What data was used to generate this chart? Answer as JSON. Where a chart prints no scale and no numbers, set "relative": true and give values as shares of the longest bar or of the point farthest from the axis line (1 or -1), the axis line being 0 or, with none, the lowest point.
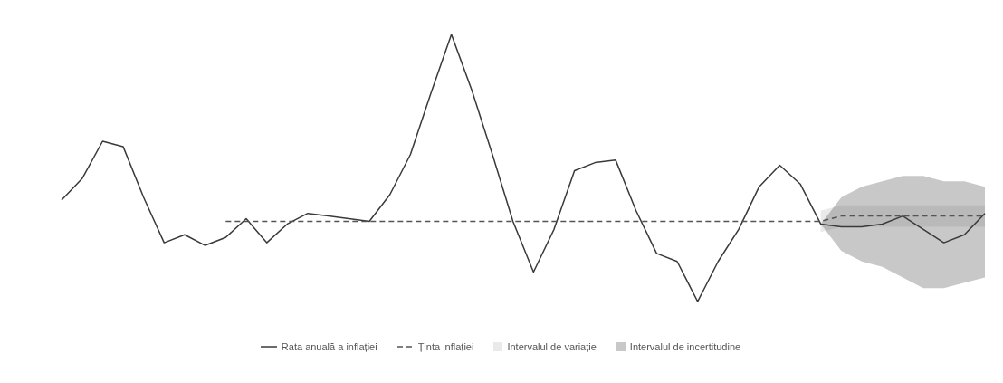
{
  "chart_data": {
    "type": "line",
    "relative": true,
    "categories": [
      null,
      null,
      null,
      null,
      null,
      null,
      null,
      null,
      null,
      null,
      null,
      null,
      null,
      null,
      null,
      null,
      null,
      null,
      null,
      null,
      null,
      null,
      null,
      null,
      null,
      null,
      null,
      null,
      null,
      null,
      null,
      null,
      null,
      null,
      null,
      null,
      null,
      null,
      null,
      null,
      null,
      null,
      null,
      null,
      null,
      null
    ],
    "series": [
      {
        "name": "Rata anuală a inflației",
        "color": "#3a3a3a",
        "line_style": "solid",
        "values": [
          0.38,
          0.46,
          0.6,
          0.58,
          0.39,
          0.22,
          0.25,
          0.21,
          0.24,
          0.31,
          0.22,
          0.29,
          0.33,
          0.32,
          0.31,
          0.3,
          0.4,
          0.55,
          0.78,
          1.0,
          0.79,
          0.55,
          0.3,
          0.11,
          0.27,
          0.49,
          0.52,
          0.53,
          0.34,
          0.18,
          0.15,
          0.0,
          0.15,
          0.27,
          0.43,
          0.51,
          0.44,
          0.29,
          0.28,
          0.28,
          0.29,
          0.32,
          0.27,
          0.22,
          0.25,
          0.33
        ],
        "lower": [
          null,
          null,
          null,
          null,
          null,
          null,
          null,
          null,
          null,
          null,
          null,
          null,
          null,
          null,
          null,
          null,
          null,
          null,
          null,
          null,
          null,
          null,
          null,
          null,
          null,
          null,
          null,
          null,
          null,
          null,
          null,
          null,
          null,
          null,
          null,
          null,
          null,
          0.29,
          0.19,
          0.15,
          0.13,
          0.09,
          0.05,
          0.05,
          0.07,
          0.09
        ],
        "upper": [
          null,
          null,
          null,
          null,
          null,
          null,
          null,
          null,
          null,
          null,
          null,
          null,
          null,
          null,
          null,
          null,
          null,
          null,
          null,
          null,
          null,
          null,
          null,
          null,
          null,
          null,
          null,
          null,
          null,
          null,
          null,
          null,
          null,
          null,
          null,
          null,
          null,
          0.29,
          0.39,
          0.43,
          0.45,
          0.47,
          0.47,
          0.45,
          0.45,
          0.43
        ]
      },
      {
        "name": "Ținta inflației",
        "color": "#555555",
        "line_style": "dashed",
        "values": [
          null,
          null,
          null,
          null,
          null,
          null,
          null,
          null,
          0.3,
          0.3,
          0.3,
          0.3,
          0.3,
          0.3,
          0.3,
          0.3,
          0.3,
          0.3,
          0.3,
          0.3,
          0.3,
          0.3,
          0.3,
          0.3,
          0.3,
          0.3,
          0.3,
          0.3,
          0.3,
          0.3,
          0.3,
          0.3,
          0.3,
          0.3,
          0.3,
          0.3,
          0.3,
          0.3,
          0.32,
          0.32,
          0.32,
          0.32,
          0.32,
          0.32,
          0.32,
          0.32
        ],
        "lower": [
          null,
          null,
          null,
          null,
          null,
          null,
          null,
          null,
          null,
          null,
          null,
          null,
          null,
          null,
          null,
          null,
          null,
          null,
          null,
          null,
          null,
          null,
          null,
          null,
          null,
          null,
          null,
          null,
          null,
          null,
          null,
          null,
          null,
          null,
          null,
          null,
          null,
          0.26,
          0.28,
          0.28,
          0.28,
          0.28,
          0.28,
          0.28,
          0.28,
          0.28
        ],
        "upper": [
          null,
          null,
          null,
          null,
          null,
          null,
          null,
          null,
          null,
          null,
          null,
          null,
          null,
          null,
          null,
          null,
          null,
          null,
          null,
          null,
          null,
          null,
          null,
          null,
          null,
          null,
          null,
          null,
          null,
          null,
          null,
          null,
          null,
          null,
          null,
          null,
          null,
          0.34,
          0.36,
          0.36,
          0.36,
          0.36,
          0.36,
          0.36,
          0.36,
          0.36
        ]
      }
    ],
    "annotations": [
      "Intervalul de variație",
      "Intervalul de incertitudine"
    ],
    "grid": false,
    "legend": "bottom",
    "marker": "none"
  }
}
